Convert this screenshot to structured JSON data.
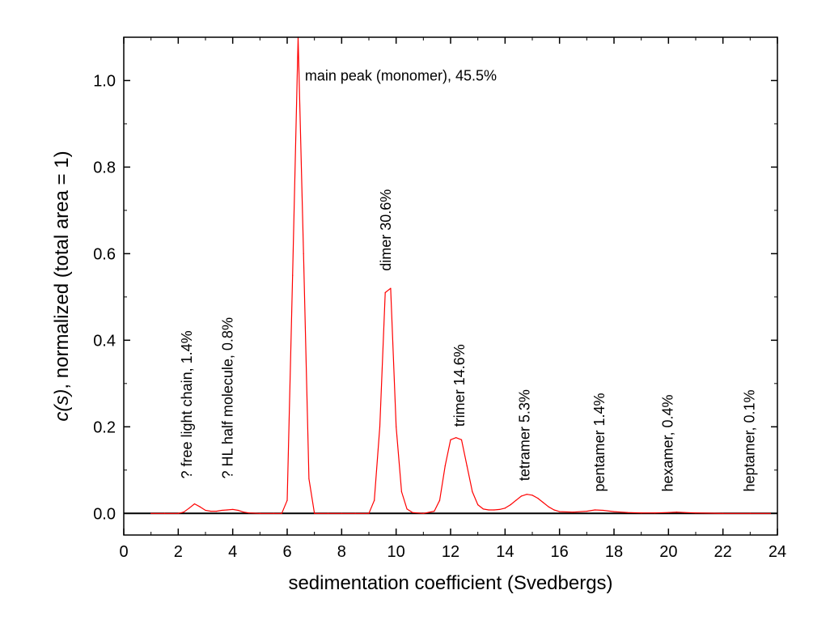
{
  "chart_data": {
    "type": "line",
    "xlabel": "sedimentation coefficient (Svedbergs)",
    "ylabel_italic": "c(s)",
    "ylabel_rest": ", normalized (total area = 1)",
    "xlim": [
      0,
      24
    ],
    "ylim": [
      -0.05,
      1.1
    ],
    "x_ticks": [
      "0",
      "2",
      "4",
      "6",
      "8",
      "10",
      "12",
      "14",
      "16",
      "18",
      "20",
      "22",
      "24"
    ],
    "y_ticks": [
      "0.0",
      "0.2",
      "0.4",
      "0.6",
      "0.8",
      "1.0"
    ],
    "grid": false,
    "series": [
      {
        "color": "#ff0000",
        "x": [
          1.0,
          1.5,
          2.0,
          2.2,
          2.4,
          2.6,
          2.8,
          3.0,
          3.2,
          3.4,
          3.6,
          3.8,
          4.0,
          4.2,
          4.4,
          4.6,
          5.0,
          5.5,
          5.8,
          6.0,
          6.2,
          6.4,
          6.6,
          6.8,
          7.0,
          7.5,
          8.0,
          8.5,
          9.0,
          9.2,
          9.4,
          9.6,
          9.8,
          10.0,
          10.2,
          10.4,
          10.6,
          11.0,
          11.4,
          11.6,
          11.8,
          12.0,
          12.2,
          12.4,
          12.6,
          12.8,
          13.0,
          13.2,
          13.4,
          13.6,
          13.8,
          14.0,
          14.2,
          14.4,
          14.6,
          14.8,
          15.0,
          15.2,
          15.4,
          15.6,
          15.8,
          16.0,
          16.5,
          17.0,
          17.3,
          17.6,
          18.0,
          18.5,
          19.0,
          19.5,
          20.0,
          20.3,
          20.6,
          21.0,
          22.0,
          23.0,
          24.0
        ],
        "y": [
          0.0,
          0.0,
          0.0,
          0.003,
          0.012,
          0.022,
          0.015,
          0.007,
          0.005,
          0.005,
          0.007,
          0.008,
          0.009,
          0.007,
          0.003,
          0.001,
          0.0,
          0.0,
          0.0,
          0.03,
          0.55,
          1.1,
          0.6,
          0.08,
          0.0,
          0.0,
          0.0,
          0.0,
          0.0,
          0.03,
          0.2,
          0.51,
          0.52,
          0.2,
          0.05,
          0.01,
          0.002,
          0.0,
          0.005,
          0.03,
          0.11,
          0.17,
          0.175,
          0.17,
          0.11,
          0.05,
          0.02,
          0.01,
          0.008,
          0.008,
          0.009,
          0.012,
          0.02,
          0.03,
          0.04,
          0.044,
          0.042,
          0.035,
          0.025,
          0.015,
          0.008,
          0.004,
          0.003,
          0.005,
          0.008,
          0.007,
          0.004,
          0.002,
          0.001,
          0.001,
          0.002,
          0.003,
          0.002,
          0.001,
          0.0,
          0.0,
          0.0
        ]
      }
    ],
    "baseline": {
      "y": 0.0,
      "color": "#000000"
    },
    "annotations": [
      {
        "text": "main peak (monomer), 45.5%",
        "x": 6.65,
        "y": 1.0,
        "rotation": 0
      },
      {
        "text": "? free light chain, 1.4%",
        "x": 2.5,
        "y": 0.08,
        "rotation": -90
      },
      {
        "text": "? HL half molecule, 0.8%",
        "x": 4.0,
        "y": 0.08,
        "rotation": -90
      },
      {
        "text": "dimer 30.6%",
        "x": 9.8,
        "y": 0.56,
        "rotation": -90
      },
      {
        "text": "trimer 14.6%",
        "x": 12.5,
        "y": 0.2,
        "rotation": -90
      },
      {
        "text": "tetramer 5.3%",
        "x": 14.9,
        "y": 0.075,
        "rotation": -90
      },
      {
        "text": "pentamer 1.4%",
        "x": 17.65,
        "y": 0.05,
        "rotation": -90
      },
      {
        "text": "hexamer, 0.4%",
        "x": 20.15,
        "y": 0.05,
        "rotation": -90
      },
      {
        "text": "heptamer, 0.1%",
        "x": 23.15,
        "y": 0.05,
        "rotation": -90
      }
    ]
  }
}
